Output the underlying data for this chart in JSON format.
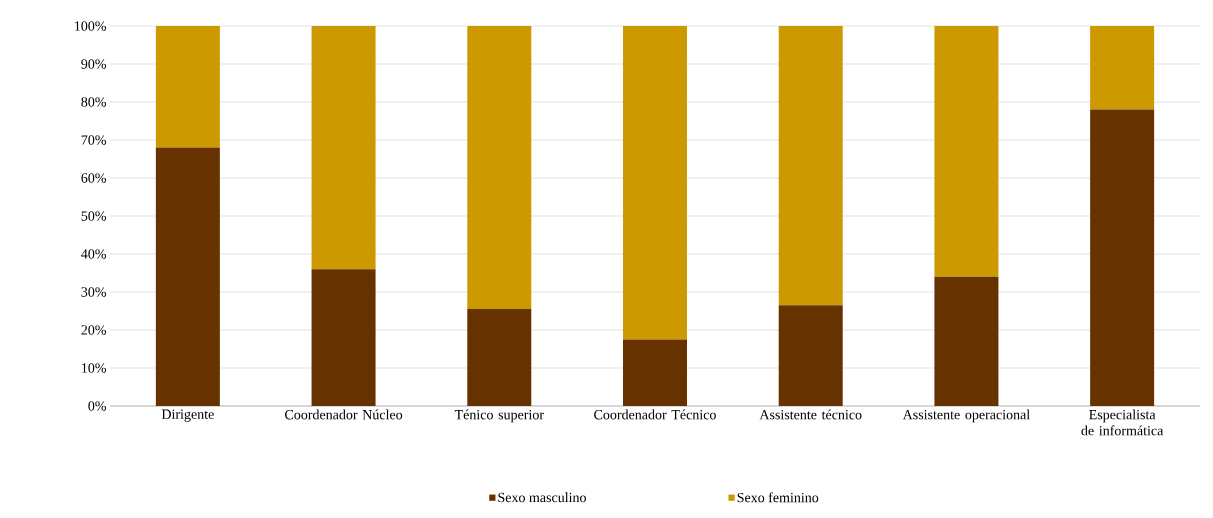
{
  "chart_data": {
    "type": "bar",
    "stacked": true,
    "categories": [
      "Dirigente",
      "Coordenador Núcleo",
      "Ténico superior",
      "Coordenador Técnico",
      "Assistente técnico",
      "Assistente operacional",
      "Especialista de informática"
    ],
    "series": [
      {
        "name": "Sexo masculino",
        "color": "#663300",
        "values": [
          68,
          36,
          25.5,
          17.5,
          26.5,
          34,
          78
        ]
      },
      {
        "name": "Sexo feminino",
        "color": "#cc9900",
        "values": [
          32,
          64,
          74.5,
          82.5,
          73.5,
          66,
          22
        ]
      }
    ],
    "ylim": [
      0,
      100
    ],
    "yticks": [
      {
        "value": 0,
        "label": "0%"
      },
      {
        "value": 10,
        "label": "10%"
      },
      {
        "value": 20,
        "label": "20%"
      },
      {
        "value": 30,
        "label": "30%"
      },
      {
        "value": 40,
        "label": "40%"
      },
      {
        "value": 50,
        "label": "50%"
      },
      {
        "value": 60,
        "label": "60%"
      },
      {
        "value": 70,
        "label": "70%"
      },
      {
        "value": 80,
        "label": "80%"
      },
      {
        "value": 90,
        "label": "90%"
      },
      {
        "value": 100,
        "label": "100%"
      }
    ],
    "grid": "y",
    "legend": "bottom"
  }
}
